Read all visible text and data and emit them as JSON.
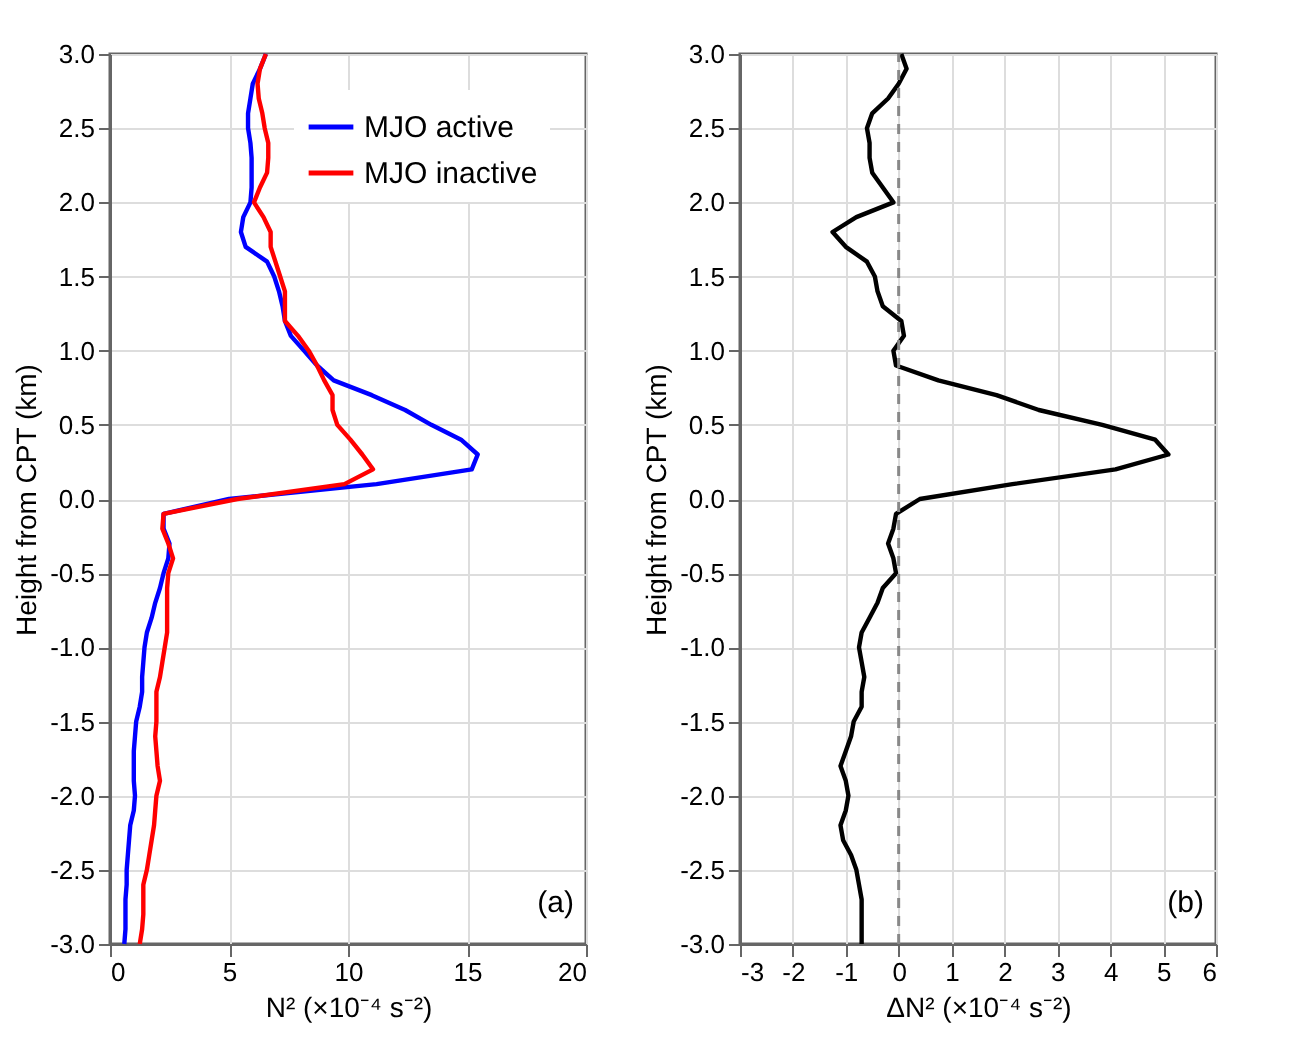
{
  "chart_data": [
    {
      "type": "line",
      "xlabel": "N² (×10⁻⁴ s⁻²)",
      "ylabel": "Height from CPT (km)",
      "xlim": [
        0,
        20
      ],
      "xticks": [
        0,
        5,
        10,
        15,
        20
      ],
      "ylim": [
        -3,
        3
      ],
      "yticks": [
        {
          "value": -3,
          "label": "-3.0"
        },
        {
          "value": -2.5,
          "label": "-2.5"
        },
        {
          "value": -2,
          "label": "-2.0"
        },
        {
          "value": -1.5,
          "label": "-1.5"
        },
        {
          "value": -1,
          "label": "-1.0"
        },
        {
          "value": -0.5,
          "label": "-0.5"
        },
        {
          "value": 0,
          "label": "0.0"
        },
        {
          "value": 0.5,
          "label": "0.5"
        },
        {
          "value": 1,
          "label": "1.0"
        },
        {
          "value": 1.5,
          "label": "1.5"
        },
        {
          "value": 2,
          "label": "2.0"
        },
        {
          "value": 2.5,
          "label": "2.5"
        },
        {
          "value": 3,
          "label": "3.0"
        }
      ],
      "grid": true,
      "legend": "top right",
      "line_style": "solid",
      "marker": "none",
      "annotations": [
        {
          "text": "(a)"
        }
      ],
      "series": [
        {
          "name": "MJO active",
          "color": "#0000ff",
          "x": [
            6.55,
            6.3,
            6.0,
            5.9,
            5.8,
            5.8,
            5.9,
            5.95,
            5.95,
            5.95,
            5.9,
            5.6,
            5.5,
            5.7,
            6.6,
            6.9,
            7.1,
            7.25,
            7.35,
            7.6,
            8.15,
            8.7,
            9.4,
            11.0,
            12.4,
            13.5,
            14.75,
            15.45,
            15.2,
            11.2,
            5.0,
            2.25,
            2.25,
            2.5,
            2.45,
            2.25,
            2.1,
            1.9,
            1.75,
            1.55,
            1.45,
            1.4,
            1.35,
            1.35,
            1.25,
            1.1,
            1.05,
            1.0,
            1.0,
            1.0,
            1.05,
            1.0,
            0.85,
            0.8,
            0.75,
            0.7,
            0.7,
            0.65,
            0.65,
            0.65,
            0.6
          ],
          "values": [
            3.0,
            2.9,
            2.8,
            2.7,
            2.6,
            2.5,
            2.4,
            2.3,
            2.2,
            2.1,
            2.0,
            1.9,
            1.8,
            1.7,
            1.6,
            1.5,
            1.4,
            1.3,
            1.2,
            1.1,
            1.0,
            0.9,
            0.8,
            0.7,
            0.6,
            0.5,
            0.4,
            0.3,
            0.2,
            0.1,
            0.0,
            -0.1,
            -0.2,
            -0.3,
            -0.4,
            -0.5,
            -0.6,
            -0.7,
            -0.8,
            -0.9,
            -1.0,
            -1.1,
            -1.2,
            -1.3,
            -1.4,
            -1.5,
            -1.6,
            -1.7,
            -1.8,
            -1.9,
            -2.0,
            -2.1,
            -2.2,
            -2.3,
            -2.4,
            -2.5,
            -2.6,
            -2.7,
            -2.8,
            -2.9,
            -3.0
          ]
        },
        {
          "name": "MJO inactive",
          "color": "#ff0000",
          "x": [
            6.55,
            6.3,
            6.2,
            6.25,
            6.4,
            6.5,
            6.65,
            6.65,
            6.6,
            6.3,
            6.05,
            6.45,
            6.75,
            6.75,
            6.95,
            7.15,
            7.35,
            7.35,
            7.35,
            7.9,
            8.35,
            8.7,
            9.0,
            9.35,
            9.35,
            9.55,
            10.1,
            10.6,
            11.05,
            9.85,
            5.35,
            2.25,
            2.2,
            2.45,
            2.65,
            2.45,
            2.4,
            2.4,
            2.4,
            2.4,
            2.3,
            2.2,
            2.1,
            1.95,
            1.95,
            1.95,
            1.9,
            1.95,
            2.0,
            2.1,
            1.95,
            1.9,
            1.85,
            1.75,
            1.65,
            1.55,
            1.4,
            1.4,
            1.4,
            1.35,
            1.25
          ],
          "values": [
            3.0,
            2.9,
            2.8,
            2.7,
            2.6,
            2.5,
            2.4,
            2.3,
            2.2,
            2.1,
            2.0,
            1.9,
            1.8,
            1.7,
            1.6,
            1.5,
            1.4,
            1.3,
            1.2,
            1.1,
            1.0,
            0.9,
            0.8,
            0.7,
            0.6,
            0.5,
            0.4,
            0.3,
            0.2,
            0.1,
            0.0,
            -0.1,
            -0.2,
            -0.3,
            -0.4,
            -0.5,
            -0.6,
            -0.7,
            -0.8,
            -0.9,
            -1.0,
            -1.1,
            -1.2,
            -1.3,
            -1.4,
            -1.5,
            -1.6,
            -1.7,
            -1.8,
            -1.9,
            -2.0,
            -2.1,
            -2.2,
            -2.3,
            -2.4,
            -2.5,
            -2.6,
            -2.7,
            -2.8,
            -2.9,
            -3.0
          ]
        }
      ]
    },
    {
      "type": "line",
      "xlabel": "ΔN² (×10⁻⁴ s⁻²)",
      "ylabel": "Height from CPT (km)",
      "xlim": [
        -3,
        6
      ],
      "xticks": [
        -3,
        -2,
        -1,
        0,
        1,
        2,
        3,
        4,
        5,
        6
      ],
      "ylim": [
        -3,
        3
      ],
      "yticks": [
        {
          "value": -3,
          "label": "-3.0"
        },
        {
          "value": -2.5,
          "label": "-2.5"
        },
        {
          "value": -2,
          "label": "-2.0"
        },
        {
          "value": -1.5,
          "label": "-1.5"
        },
        {
          "value": -1,
          "label": "-1.0"
        },
        {
          "value": -0.5,
          "label": "-0.5"
        },
        {
          "value": 0,
          "label": "0.0"
        },
        {
          "value": 0.5,
          "label": "0.5"
        },
        {
          "value": 1,
          "label": "1.0"
        },
        {
          "value": 1.5,
          "label": "1.5"
        },
        {
          "value": 2,
          "label": "2.0"
        },
        {
          "value": 2.5,
          "label": "2.5"
        },
        {
          "value": 3,
          "label": "3.0"
        }
      ],
      "grid": true,
      "line_style": "solid",
      "marker": "none",
      "annotations": [
        {
          "text": "(b)"
        }
      ],
      "ref_lines": [
        {
          "axis": "x",
          "value": 0,
          "color": "#888888",
          "line_style": "dashed"
        }
      ],
      "series": [
        {
          "color": "#000000",
          "x": [
            0.05,
            0.15,
            0.0,
            -0.2,
            -0.5,
            -0.6,
            -0.55,
            -0.55,
            -0.5,
            -0.3,
            -0.1,
            -0.8,
            -1.25,
            -1.0,
            -0.6,
            -0.45,
            -0.4,
            -0.3,
            0.05,
            0.1,
            -0.1,
            -0.05,
            0.75,
            1.85,
            2.65,
            3.85,
            4.85,
            5.1,
            4.1,
            2.15,
            0.4,
            -0.05,
            -0.1,
            -0.2,
            -0.1,
            -0.05,
            -0.3,
            -0.4,
            -0.55,
            -0.7,
            -0.75,
            -0.7,
            -0.65,
            -0.7,
            -0.7,
            -0.85,
            -0.9,
            -1.0,
            -1.1,
            -1.0,
            -0.95,
            -1.0,
            -1.1,
            -1.05,
            -0.9,
            -0.8,
            -0.75,
            -0.7,
            -0.7,
            -0.7,
            -0.7
          ],
          "values": [
            3.0,
            2.9,
            2.8,
            2.7,
            2.6,
            2.5,
            2.4,
            2.3,
            2.2,
            2.1,
            2.0,
            1.9,
            1.8,
            1.7,
            1.6,
            1.5,
            1.4,
            1.3,
            1.2,
            1.1,
            1.0,
            0.9,
            0.8,
            0.7,
            0.6,
            0.5,
            0.4,
            0.3,
            0.2,
            0.1,
            0.0,
            -0.1,
            -0.2,
            -0.3,
            -0.4,
            -0.5,
            -0.6,
            -0.7,
            -0.8,
            -0.9,
            -1.0,
            -1.1,
            -1.2,
            -1.3,
            -1.4,
            -1.5,
            -1.6,
            -1.7,
            -1.8,
            -1.9,
            -2.0,
            -2.1,
            -2.2,
            -2.3,
            -2.4,
            -2.5,
            -2.6,
            -2.7,
            -2.8,
            -2.9,
            -3.0
          ]
        }
      ]
    }
  ]
}
